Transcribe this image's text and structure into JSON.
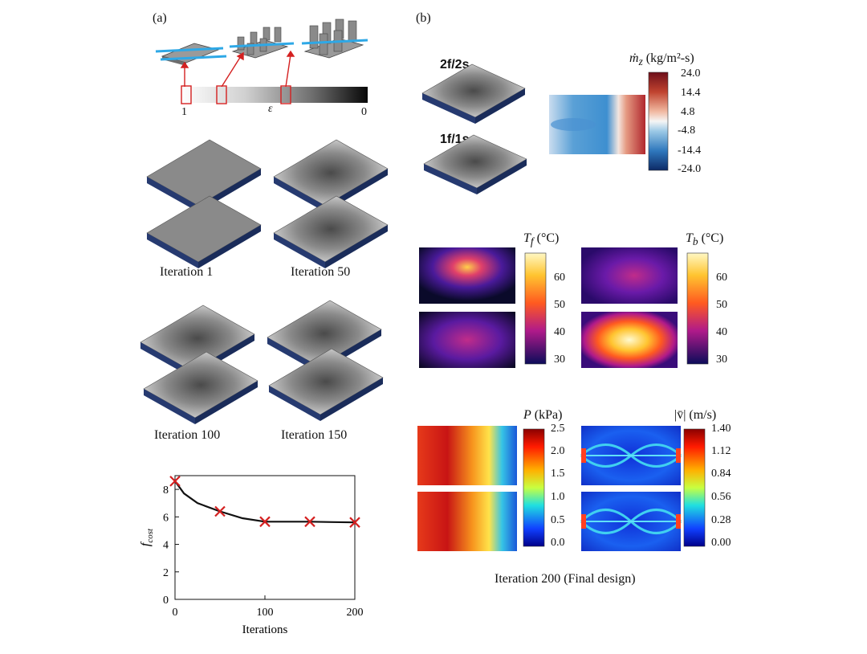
{
  "panel_a": {
    "label": "(a)",
    "eps_scale": {
      "left": "1",
      "symbol": "ε",
      "right": "0"
    },
    "iterations": [
      "Iteration 1",
      "Iteration 50",
      "Iteration 100",
      "Iteration 150"
    ]
  },
  "panel_b": {
    "label": "(b)",
    "layer_top": "2f/2s",
    "layer_bottom": "1f/1s",
    "mz_title": "ṁ",
    "mz_sub": "z",
    "mz_unit": "(kg/m²-s)",
    "mz_ticks": [
      "24.0",
      "14.4",
      "4.8",
      "-4.8",
      "-14.4",
      "-24.0"
    ],
    "tf_title": "T",
    "tf_sub": "f",
    "tf_unit": "(°C)",
    "tb_title": "T",
    "tb_sub": "b",
    "tb_unit": "(°C)",
    "temp_ticks": [
      "60",
      "50",
      "40",
      "30"
    ],
    "p_title": "P",
    "p_unit": "(kPa)",
    "p_ticks": [
      "2.5",
      "2.0",
      "1.5",
      "1.0",
      "0.5",
      "0.0"
    ],
    "v_title": "|v̄|",
    "v_unit": "(m/s)",
    "v_ticks": [
      "1.40",
      "1.12",
      "0.84",
      "0.56",
      "0.28",
      "0.00"
    ],
    "final_caption": "Iteration 200 (Final design)"
  },
  "chart_data": {
    "type": "line",
    "xlabel": "Iterations",
    "ylabel": "fcost",
    "ylabel_main": "f",
    "ylabel_sub": "cost",
    "xlim": [
      0,
      200
    ],
    "ylim": [
      0,
      9
    ],
    "xticks": [
      "0",
      "100",
      "200"
    ],
    "yticks": [
      "0",
      "2",
      "4",
      "6",
      "8"
    ],
    "curve": {
      "x": [
        0,
        10,
        25,
        50,
        75,
        100,
        125,
        150,
        175,
        200
      ],
      "y": [
        8.6,
        7.7,
        7.0,
        6.4,
        5.9,
        5.65,
        5.65,
        5.65,
        5.62,
        5.6
      ]
    },
    "markers": {
      "x": [
        0,
        50,
        100,
        150,
        200
      ],
      "y": [
        8.6,
        6.4,
        5.65,
        5.65,
        5.6
      ]
    },
    "marker_color": "#d42020",
    "line_color": "#111111"
  }
}
